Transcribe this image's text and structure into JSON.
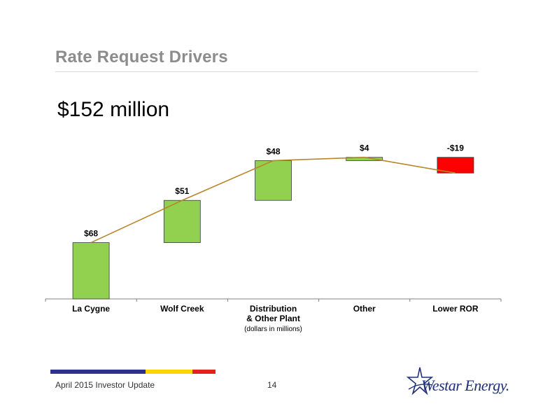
{
  "title": "Rate Request Drivers",
  "headline": "$152 million",
  "chart_data": {
    "type": "bar",
    "subtype": "waterfall",
    "categories": [
      "La Cygne",
      "Wolf Creek",
      "Distribution\n& Other Plant",
      "Other",
      "Lower ROR"
    ],
    "values": [
      68,
      51,
      48,
      4,
      -19
    ],
    "data_labels": [
      "$68",
      "$51",
      "$48",
      "$4",
      "-$19"
    ],
    "note": "(dollars in millions)",
    "ylim": [
      0,
      175
    ],
    "grid": false,
    "colors": {
      "increase": "#92d050",
      "decrease": "#ff0000",
      "connector": "#b8862b",
      "bar_edge": "#3a3a3a"
    }
  },
  "footer": {
    "left_text": "April 2015 Investor Update",
    "page_number": "14",
    "stripe_colors": [
      "#2e3192",
      "#ffd200",
      "#e2231a"
    ]
  },
  "logo": {
    "text": "Westar Energy.",
    "icon": "star-swoosh-icon"
  }
}
